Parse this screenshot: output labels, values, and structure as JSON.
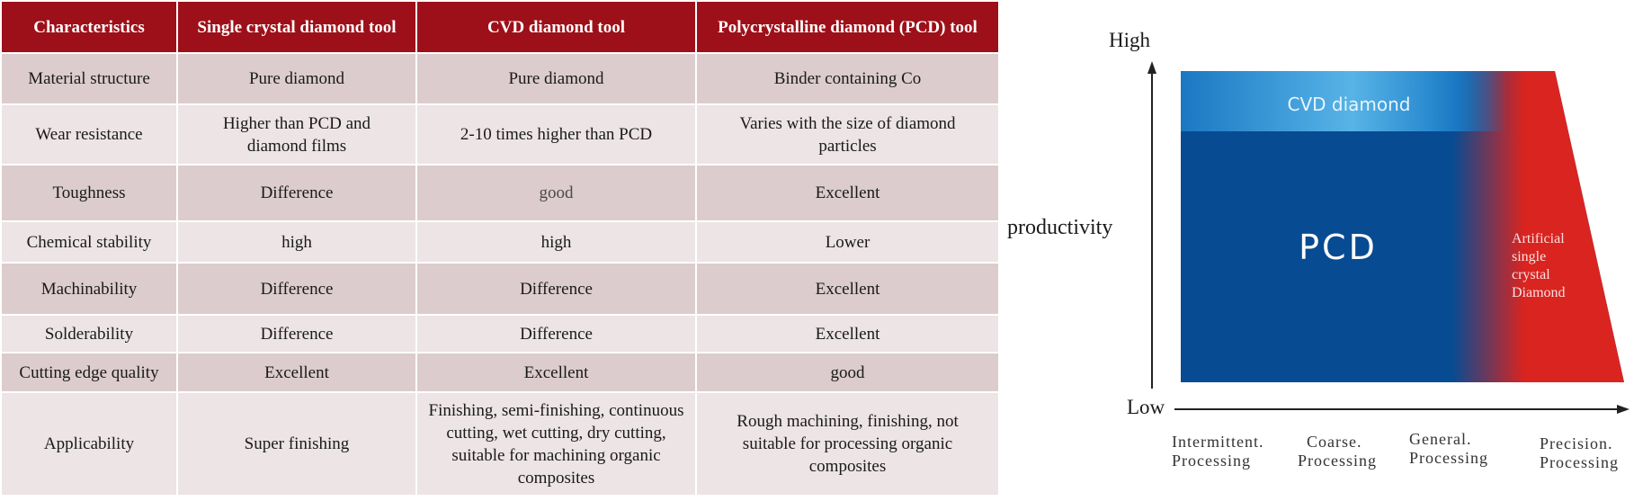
{
  "table": {
    "headers": [
      "Characteristics",
      "Single crystal diamond tool",
      "CVD diamond tool",
      "Polycrystalline diamond (PCD) tool"
    ],
    "rows": [
      [
        "Material structure",
        "Pure diamond",
        "Pure diamond",
        "Binder containing Co"
      ],
      [
        "Wear resistance",
        "Higher than PCD and diamond films",
        "2-10 times higher than PCD",
        "Varies with the size of diamond particles"
      ],
      [
        "Toughness",
        "Difference",
        "good",
        "Excellent"
      ],
      [
        "Chemical stability",
        "high",
        "high",
        "Lower"
      ],
      [
        "Machinability",
        "Difference",
        "Difference",
        "Excellent"
      ],
      [
        "Solderability",
        "Difference",
        "Difference",
        "Excellent"
      ],
      [
        "Cutting edge quality",
        "Excellent",
        "Excellent",
        "good"
      ],
      [
        "Applicability",
        "Super finishing",
        "Finishing, semi-finishing, continuous cutting, wet cutting, dry cutting, suitable for machining organic composites",
        "Rough machining, finishing, not suitable for processing organic composites"
      ]
    ],
    "colors": {
      "header_bg": "#9d1019",
      "row_dark": "#dccccd",
      "row_light": "#ece4e5"
    }
  },
  "diagram": {
    "y_axis": {
      "label": "productivity",
      "high": "High",
      "low": "Low"
    },
    "x_axis": {
      "categories": [
        {
          "line1": "Intermittent.",
          "line2": "Processing"
        },
        {
          "line1": "Coarse.",
          "line2": "Processing"
        },
        {
          "line1": "General.",
          "line2": "Processing"
        },
        {
          "line1": "Precision.",
          "line2": "Processing"
        }
      ]
    },
    "regions": {
      "cvd": "CVD diamond",
      "pcd": "PCD",
      "artificial": [
        "Artificial",
        "single",
        "crystal",
        "Diamond"
      ]
    },
    "colors": {
      "pcd": "#074b92",
      "cvd_light": "#58b3e6",
      "cvd_dark": "#1a78c2",
      "artificial": "#d92420"
    }
  }
}
